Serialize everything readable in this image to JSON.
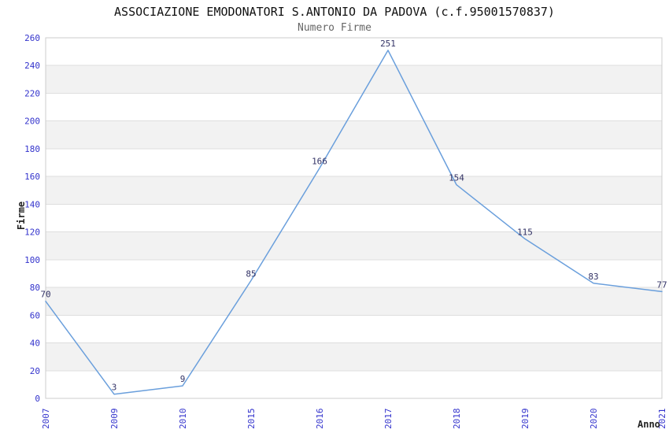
{
  "title": "ASSOCIAZIONE EMODONATORI S.ANTONIO DA PADOVA (c.f.95001570837)",
  "subtitle": "Numero Firme",
  "chart_data": {
    "type": "line",
    "title": "ASSOCIAZIONE EMODONATORI S.ANTONIO DA PADOVA (c.f.95001570837)",
    "subtitle": "Numero Firme",
    "xlabel": "Anno",
    "ylabel": "Firme",
    "categories": [
      "2007",
      "2009",
      "2010",
      "2015",
      "2016",
      "2017",
      "2018",
      "2019",
      "2020",
      "2021"
    ],
    "values": [
      70,
      3,
      9,
      85,
      166,
      251,
      154,
      115,
      83,
      77
    ],
    "ylim": [
      0,
      260
    ],
    "ytick_step": 20,
    "yticks": [
      0,
      20,
      40,
      60,
      80,
      100,
      120,
      140,
      160,
      180,
      200,
      220,
      240,
      260
    ],
    "legend": "none",
    "grid": "alternating-horizontal-bands",
    "data_labels_visible": true,
    "colors": {
      "line": "#6a9fdc",
      "tick_labels": "#3333cc",
      "data_labels": "#333366",
      "band": "#f2f2f2",
      "gridline": "#dedede",
      "border": "#cccccc",
      "title": "#111111",
      "subtitle": "#666666",
      "axis_titles": "#222222",
      "background": "#ffffff"
    }
  }
}
